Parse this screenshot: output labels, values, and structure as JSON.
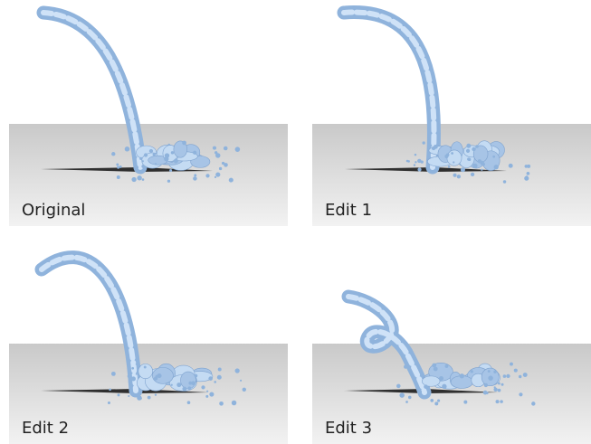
{
  "panels": [
    {
      "label": "Original"
    },
    {
      "label": "Edit 1"
    },
    {
      "label": "Edit 2"
    },
    {
      "label": "Edit 3"
    }
  ]
}
